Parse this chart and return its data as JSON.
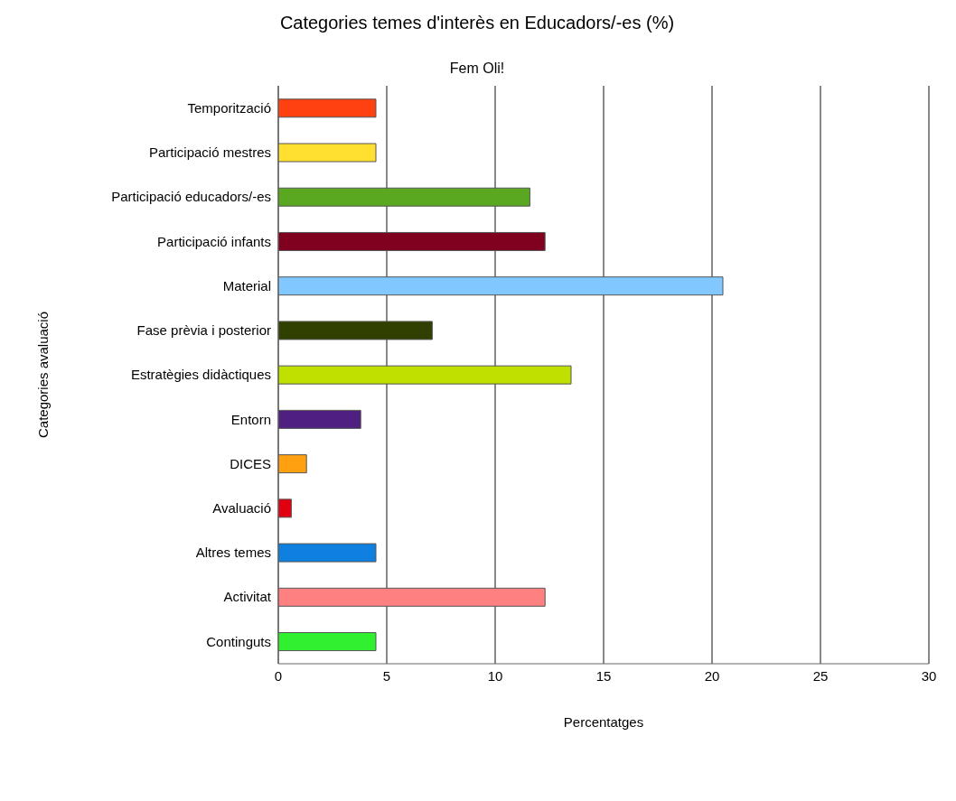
{
  "chart_data": {
    "type": "bar",
    "orientation": "horizontal",
    "title": "Categories temes d'interès en Educadors/-es (%)",
    "subtitle": "Fem Oli!",
    "xlabel": "Percentatges",
    "ylabel": "Categories avaluació",
    "categories": [
      "Temporització",
      "Participació mestres",
      "Participació educadors/-es",
      "Participació infants",
      "Material",
      "Fase prèvia i posterior",
      "Estratègies didàctiques",
      "Entorn",
      "DICES",
      "Avaluació",
      "Altres temes",
      "Activitat",
      "Continguts"
    ],
    "values": [
      4.5,
      4.5,
      11.6,
      12.3,
      20.5,
      7.1,
      13.5,
      3.8,
      1.3,
      0.6,
      4.5,
      12.3,
      4.5
    ],
    "colors": [
      "#ff4010",
      "#ffe030",
      "#5aa820",
      "#800020",
      "#80c8ff",
      "#304000",
      "#c0e000",
      "#502080",
      "#ffa010",
      "#e00010",
      "#1080e0",
      "#ff8080",
      "#30f030"
    ],
    "xlim": [
      0,
      30
    ],
    "xticks": [
      0,
      5,
      10,
      15,
      20,
      25,
      30
    ],
    "grid": "x"
  }
}
